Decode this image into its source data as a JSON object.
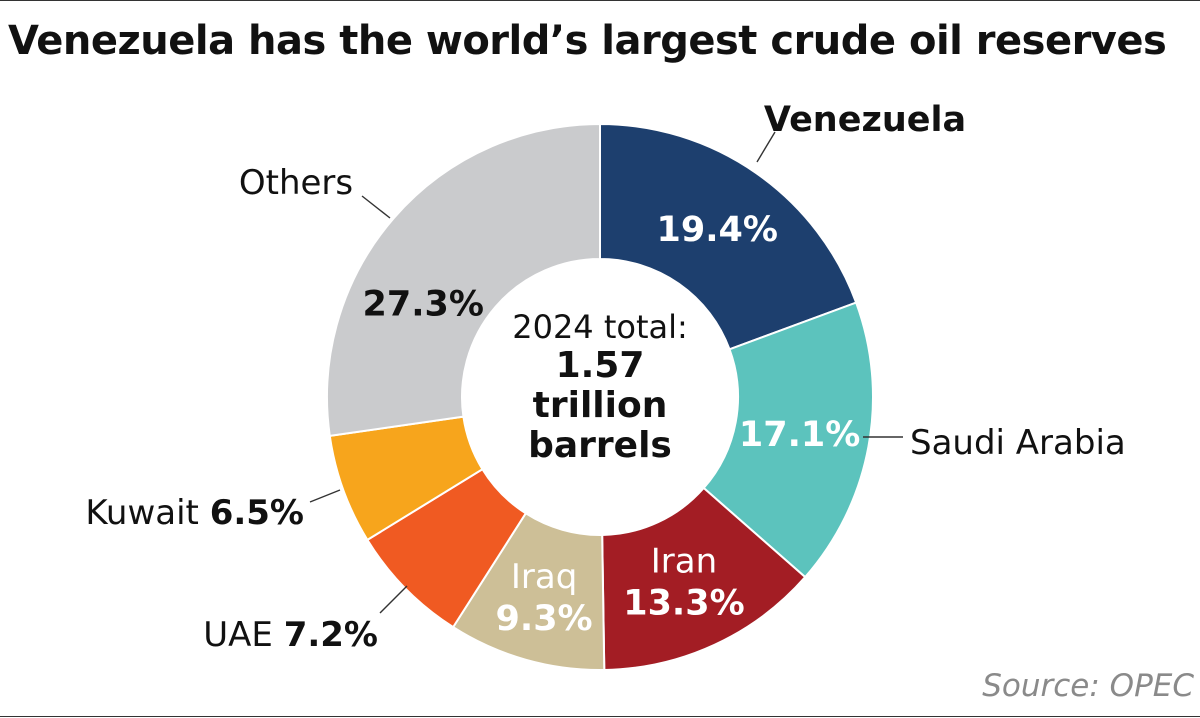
{
  "title": "Venezuela has the world’s largest crude oil reserves",
  "center": {
    "lead": "2024 total:",
    "line1": "1.57",
    "line2": "trillion",
    "line3": "barrels"
  },
  "source": "Source: OPEC",
  "chart_data": {
    "type": "pie",
    "donut": true,
    "title": "Venezuela has the world’s largest crude oil reserves",
    "unit": "%",
    "slices": [
      {
        "label": "Venezuela",
        "value": 19.4,
        "value_label": "19.4%",
        "color": "#1d3f6e"
      },
      {
        "label": "Saudi Arabia",
        "value": 17.1,
        "value_label": "17.1%",
        "color": "#5cc3bd"
      },
      {
        "label": "Iran",
        "value": 13.3,
        "value_label": "13.3%",
        "color": "#a31d24"
      },
      {
        "label": "Iraq",
        "value": 9.3,
        "value_label": "9.3%",
        "color": "#cdbf97"
      },
      {
        "label": "UAE",
        "value": 7.2,
        "value_label": "7.2%",
        "color": "#f05a22"
      },
      {
        "label": "Kuwait",
        "value": 6.5,
        "value_label": "6.5%",
        "color": "#f7a51c"
      },
      {
        "label": "Others",
        "value": 27.3,
        "value_label": "27.3%",
        "color": "#cacbcd"
      }
    ]
  }
}
